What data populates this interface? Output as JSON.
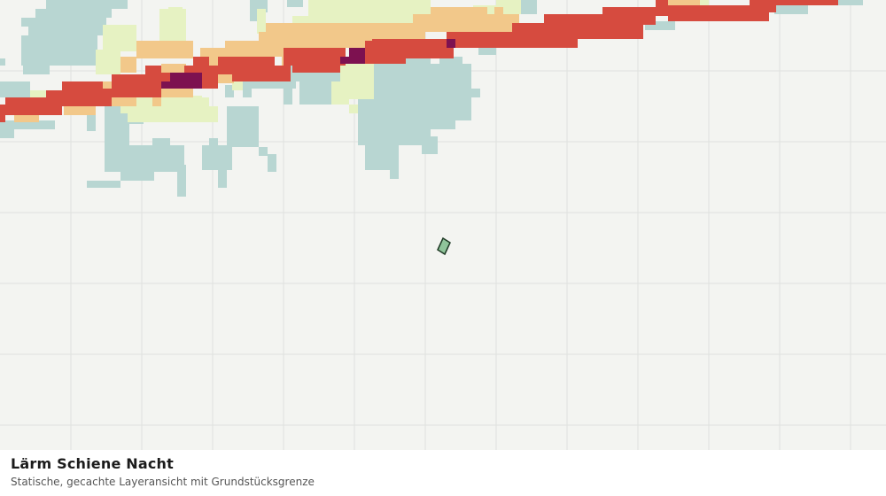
{
  "map": {
    "title": "Lärm Schiene Nacht",
    "subtitle": "Statische, gecachte Layeransicht mit Grundstücksgrenze",
    "background_color": "#f3f4f1",
    "grid_color": "#dfe1de",
    "noise_palette": {
      "lowest": "#b8d6d2",
      "low": "#e6f2c2",
      "medium": "#f2c88a",
      "high": "#d64b3f",
      "highest": "#7d1150"
    },
    "parcel": {
      "fill": "#8fc49a",
      "stroke": "#1e3a25"
    }
  }
}
